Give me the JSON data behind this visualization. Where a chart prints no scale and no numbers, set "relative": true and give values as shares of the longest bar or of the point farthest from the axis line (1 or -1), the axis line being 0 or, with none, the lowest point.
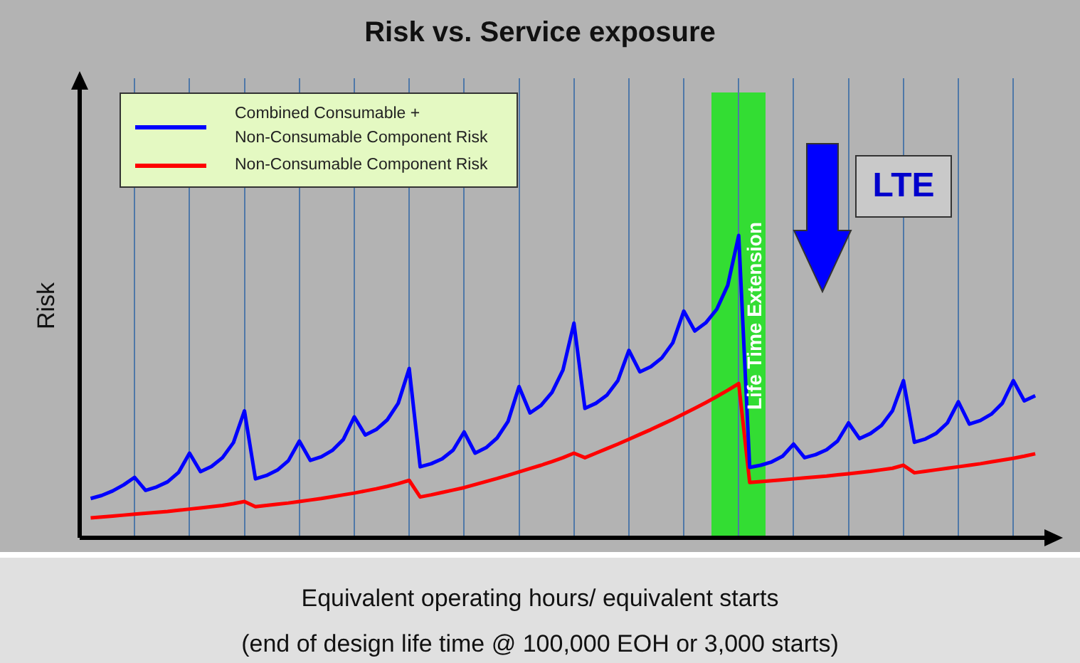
{
  "chart_data": {
    "type": "line",
    "title": "Risk vs. Service exposure",
    "xlabel": "Equivalent operating hours/ equivalent starts\n(end of design life time @ 100,000 EOH or 3,000 starts)",
    "ylabel": "Risk",
    "relative": true,
    "grid": "x",
    "legend": "top left",
    "categories": [
      null,
      null,
      null,
      null,
      null,
      null,
      null,
      null,
      null,
      null,
      null,
      null,
      null,
      null,
      null,
      null,
      null,
      null,
      null,
      null,
      null,
      null,
      null,
      null,
      null,
      null,
      null,
      null,
      null,
      null,
      null,
      null,
      null,
      null,
      null,
      null,
      null,
      null,
      null,
      null,
      null,
      null,
      null,
      null,
      null,
      null,
      null,
      null,
      null,
      null,
      null,
      null,
      null,
      null,
      null,
      null,
      null,
      null,
      null,
      null,
      null,
      null,
      null,
      null,
      null,
      null,
      null,
      null,
      null,
      null,
      null,
      null,
      null,
      null,
      null,
      null,
      null,
      null,
      null,
      null,
      null,
      null,
      null,
      null,
      null,
      null,
      null,
      null,
      null,
      null
    ],
    "series": [
      {
        "name": "Combined Consumable +\nNon-Consumable Component Risk",
        "color": "#0000ff",
        "values": [
          null,
          0.13,
          0.14,
          0.155,
          0.175,
          0.2,
          0.157,
          0.168,
          0.185,
          0.216,
          0.28,
          0.219,
          0.236,
          0.265,
          0.315,
          0.42,
          0.195,
          0.206,
          0.224,
          0.255,
          0.32,
          0.256,
          0.268,
          0.289,
          0.325,
          0.4,
          0.34,
          0.358,
          0.39,
          0.445,
          0.56,
          0.235,
          0.245,
          0.261,
          0.29,
          0.35,
          0.28,
          0.298,
          0.33,
          0.385,
          0.5,
          0.413,
          0.438,
          0.481,
          0.555,
          0.71,
          0.428,
          0.445,
          0.472,
          0.52,
          0.62,
          0.549,
          0.566,
          0.595,
          0.645,
          0.75,
          0.684,
          0.711,
          0.756,
          0.835,
          1,
          0.233,
          0.24,
          0.251,
          0.27,
          0.31,
          0.265,
          0.275,
          0.291,
          0.32,
          0.38,
          0.328,
          0.345,
          0.372,
          0.42,
          0.52,
          0.316,
          0.327,
          0.346,
          0.38,
          0.45,
          0.376,
          0.388,
          0.409,
          0.445,
          0.52,
          0.453,
          0.47,
          null,
          null
        ]
      },
      {
        "name": "Non-Consumable Component Risk",
        "color": "#ff0000",
        "values": [
          null,
          0.066,
          0.069,
          0.072,
          0.075,
          0.078,
          0.081,
          0.084,
          0.087,
          0.091,
          0.095,
          0.099,
          0.103,
          0.107,
          0.113,
          0.12,
          0.103,
          0.107,
          0.111,
          0.115,
          0.12,
          0.125,
          0.13,
          0.136,
          0.142,
          0.148,
          0.155,
          0.162,
          0.17,
          0.179,
          0.19,
          0.135,
          0.142,
          0.15,
          0.158,
          0.166,
          0.176,
          0.186,
          0.196,
          0.207,
          0.218,
          0.229,
          0.24,
          0.252,
          0.265,
          0.28,
          0.265,
          0.28,
          0.295,
          0.31,
          0.326,
          0.342,
          0.358,
          0.375,
          0.392,
          0.41,
          0.428,
          0.447,
          0.467,
          0.488,
          0.51,
          0.183,
          0.186,
          0.189,
          0.192,
          0.195,
          0.198,
          0.201,
          0.204,
          0.208,
          0.212,
          0.216,
          0.22,
          0.225,
          0.23,
          0.24,
          0.215,
          0.22,
          0.225,
          0.23,
          0.235,
          0.24,
          0.245,
          0.251,
          0.257,
          0.263,
          0.27,
          0.278,
          null,
          null
        ]
      }
    ],
    "annotations": [
      "Life Time Extension",
      "LTE"
    ]
  }
}
